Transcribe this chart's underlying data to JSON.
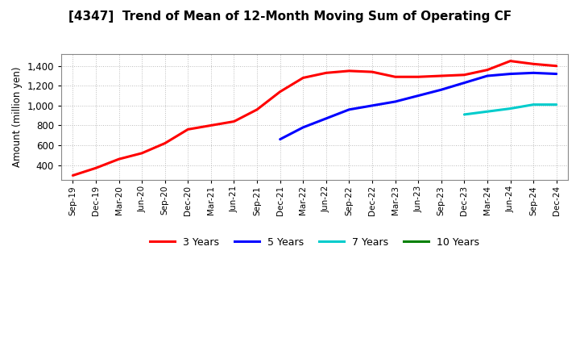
{
  "title": "[4347]  Trend of Mean of 12-Month Moving Sum of Operating CF",
  "ylabel": "Amount (million yen)",
  "background_color": "#ffffff",
  "grid_color": "#bbbbbb",
  "ylim": [
    250,
    1520
  ],
  "yticks": [
    400,
    600,
    800,
    1000,
    1200,
    1400
  ],
  "series": {
    "3yr": {
      "color": "#ff0000",
      "label": "3 Years",
      "x_idx": [
        0,
        1,
        2,
        3,
        4,
        5,
        6,
        7,
        8,
        9,
        10,
        11,
        12,
        13,
        14,
        15,
        16,
        17,
        18,
        19,
        20,
        21
      ],
      "values": [
        295,
        370,
        460,
        520,
        620,
        760,
        800,
        840,
        960,
        1140,
        1280,
        1330,
        1350,
        1340,
        1290,
        1290,
        1300,
        1310,
        1360,
        1450,
        1420,
        1400
      ]
    },
    "5yr": {
      "color": "#0000ff",
      "label": "5 Years",
      "x_idx": [
        9,
        10,
        11,
        12,
        13,
        14,
        15,
        16,
        17,
        18,
        19,
        20,
        21
      ],
      "values": [
        660,
        780,
        870,
        960,
        1000,
        1040,
        1100,
        1160,
        1230,
        1300,
        1320,
        1330,
        1320
      ]
    },
    "7yr": {
      "color": "#00cccc",
      "label": "7 Years",
      "x_idx": [
        17,
        18,
        19,
        20,
        21
      ],
      "values": [
        910,
        940,
        970,
        1010,
        1010
      ]
    },
    "10yr": {
      "color": "#008000",
      "label": "10 Years",
      "x_idx": [],
      "values": []
    }
  },
  "xtick_labels": [
    "Sep-19",
    "Dec-19",
    "Mar-20",
    "Jun-20",
    "Sep-20",
    "Dec-20",
    "Mar-21",
    "Jun-21",
    "Sep-21",
    "Dec-21",
    "Mar-22",
    "Jun-22",
    "Sep-22",
    "Dec-22",
    "Mar-23",
    "Jun-23",
    "Sep-23",
    "Dec-23",
    "Mar-24",
    "Jun-24",
    "Sep-24",
    "Dec-24"
  ],
  "legend_labels": [
    "3 Years",
    "5 Years",
    "7 Years",
    "10 Years"
  ],
  "legend_colors": [
    "#ff0000",
    "#0000ff",
    "#00cccc",
    "#008000"
  ]
}
